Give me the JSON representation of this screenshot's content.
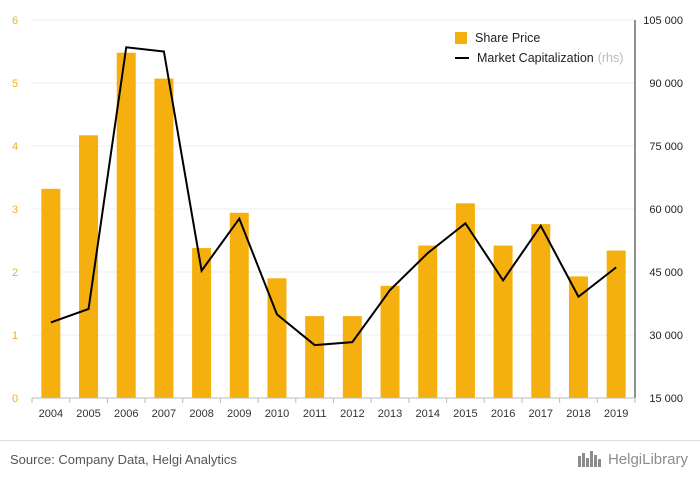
{
  "chart_data": {
    "type": "bar+line",
    "categories": [
      "2004",
      "2005",
      "2006",
      "2007",
      "2008",
      "2009",
      "2010",
      "2011",
      "2012",
      "2013",
      "2014",
      "2015",
      "2016",
      "2017",
      "2018",
      "2019"
    ],
    "series": [
      {
        "name": "Share Price",
        "type": "bar",
        "axis": "left",
        "values": [
          3.32,
          4.17,
          5.48,
          5.07,
          2.38,
          2.94,
          1.9,
          1.3,
          1.3,
          1.78,
          2.42,
          3.09,
          2.42,
          2.76,
          1.93,
          2.34
        ]
      },
      {
        "name": "Market Capitalization",
        "axis_note": "(rhs)",
        "type": "line",
        "axis": "right",
        "values": [
          33000,
          36200,
          98500,
          97500,
          45300,
          57700,
          34900,
          27600,
          28300,
          40700,
          49500,
          56600,
          43000,
          56000,
          39100,
          46100
        ]
      }
    ],
    "yleft": {
      "ylim": [
        0,
        6
      ],
      "ticks": [
        "0",
        "1",
        "2",
        "3",
        "4",
        "5",
        "6"
      ]
    },
    "yright": {
      "ylim": [
        15000,
        105000
      ],
      "ticks": [
        "15 000",
        "30 000",
        "45 000",
        "60 000",
        "75 000",
        "90 000",
        "105 000"
      ]
    },
    "colors": {
      "bar": "#f5b00f",
      "line": "#000000",
      "left_tick": "#f5b00f",
      "grid": "#ececec"
    },
    "grid": true,
    "legend_position": "top-right"
  },
  "footer": {
    "source": "Source: Company Data, Helgi Analytics",
    "brand": "HelgiLibrary"
  }
}
